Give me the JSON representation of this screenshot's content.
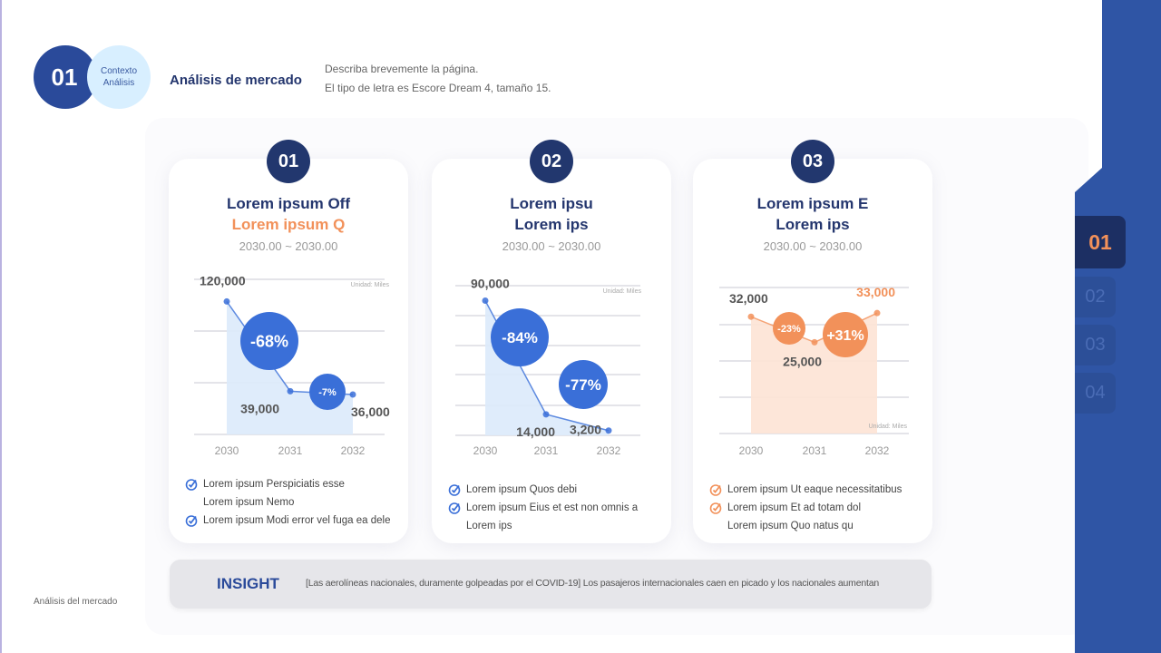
{
  "header": {
    "number": "01",
    "circle_line1": "Contexto",
    "circle_line2": "Análisis",
    "title": "Análisis de mercado",
    "desc_line1": "Describa brevemente la página.",
    "desc_line2": "El tipo de letra es Escore Dream 4, tamaño 15."
  },
  "cards": [
    {
      "number": "01",
      "title1": "Lorem ipsum Off",
      "title2": "Lorem ipsum Q",
      "range": "2030.00 ~ 2030.00",
      "unit": "Unidad: Miles",
      "bullets": [
        {
          "text": "Lorem ipsum Perspiciatis esse",
          "check": true
        },
        {
          "text": "Lorem ipsum Nemo",
          "check": false
        },
        {
          "text": "Lorem ipsum Modi error vel fuga ea dele",
          "check": true
        }
      ]
    },
    {
      "number": "02",
      "title1": "Lorem ipsu",
      "title2": "Lorem ips",
      "range": "2030.00 ~ 2030.00",
      "unit": "Unidad: Miles",
      "bullets": [
        {
          "text": "Lorem ipsum Quos debi",
          "check": true
        },
        {
          "text": "Lorem ipsum Eius et est non omnis a",
          "check": true
        },
        {
          "text": "Lorem ips",
          "check": false
        }
      ]
    },
    {
      "number": "03",
      "title1": "Lorem ipsum E",
      "title2": "Lorem ips",
      "range": "2030.00 ~ 2030.00",
      "unit": "Unidad: Miles",
      "bullets": [
        {
          "text": "Lorem ipsum Ut eaque necessitatibus",
          "check": true
        },
        {
          "text": "Lorem ipsum Et ad totam dol",
          "check": true
        },
        {
          "text": "Lorem ipsum Quo natus qu",
          "check": false
        }
      ]
    }
  ],
  "chart_data": [
    {
      "type": "area",
      "categories": [
        "2030",
        "2031",
        "2032"
      ],
      "values": [
        120000,
        39000,
        36000
      ],
      "value_labels": [
        "120,000",
        "39,000",
        "36,000"
      ],
      "changes": [
        "-68%",
        "-7%"
      ],
      "ylim": [
        0,
        140000
      ],
      "grid": true,
      "color": "#3a6fd8",
      "fill": "#dceafb"
    },
    {
      "type": "area",
      "categories": [
        "2030",
        "2031",
        "2032"
      ],
      "values": [
        90000,
        14000,
        3200
      ],
      "value_labels": [
        "90,000",
        "14,000",
        "3,200"
      ],
      "changes": [
        "-84%",
        "-77%"
      ],
      "ylim": [
        0,
        100000
      ],
      "grid": true,
      "color": "#3a6fd8",
      "fill": "#dceafb"
    },
    {
      "type": "area",
      "categories": [
        "2030",
        "2031",
        "2032"
      ],
      "values": [
        32000,
        25000,
        33000
      ],
      "value_labels": [
        "32,000",
        "25,000",
        "33,000"
      ],
      "changes": [
        "-23%",
        "+31%"
      ],
      "ylim": [
        0,
        40000
      ],
      "grid": true,
      "color": "#f2915a",
      "fill": "#fde3d5"
    }
  ],
  "insight": {
    "label": "INSIGHT",
    "text": "[Las aerolíneas nacionales, duramente golpeadas por el COVID-19] Los pasajeros internacionales caen en picado y los nacionales aumentan"
  },
  "footer": "Análisis del mercado",
  "sidebar": {
    "tabs": [
      "01",
      "02",
      "03",
      "04"
    ],
    "active": "01"
  },
  "colors": {
    "navy": "#22376e",
    "blue": "#2f55a5",
    "accent_orange": "#f2915a",
    "light_blue": "#d8efff"
  }
}
